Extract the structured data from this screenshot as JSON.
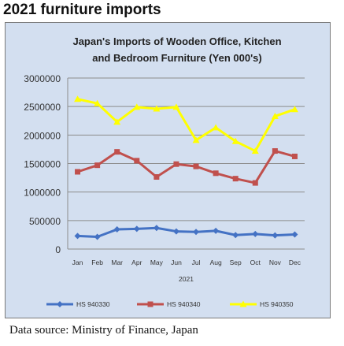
{
  "heading": "2021 furniture imports",
  "source": "Data source: Ministry of Finance, Japan",
  "chart_data": {
    "type": "line",
    "title": "Japan's Imports of  Wooden  Office, Kitchen and Bedroom Furniture (Yen 000's)",
    "title_lines": [
      "Japan's Imports of  Wooden  Office, Kitchen",
      "and Bedroom Furniture (Yen 000's)"
    ],
    "xlabel": "2021",
    "ylabel": "",
    "categories": [
      "Jan",
      "Feb",
      "Mar",
      "Apr",
      "May",
      "Jun",
      "Jul",
      "Aug",
      "Sep",
      "Oct",
      "Nov",
      "Dec"
    ],
    "ylim": [
      0,
      3000000
    ],
    "yticks": [
      "0",
      "500000",
      "1000000",
      "1500000",
      "2000000",
      "2500000",
      "3000000"
    ],
    "grid": true,
    "legend_position": "bottom",
    "series": [
      {
        "name": "HS 940330",
        "color": "#4472c4",
        "marker": "diamond",
        "values": [
          230000,
          215000,
          345000,
          355000,
          370000,
          310000,
          300000,
          320000,
          245000,
          265000,
          240000,
          255000
        ]
      },
      {
        "name": "HS 940340",
        "color": "#c0504d",
        "marker": "square",
        "values": [
          1355000,
          1470000,
          1705000,
          1550000,
          1265000,
          1490000,
          1450000,
          1330000,
          1235000,
          1160000,
          1720000,
          1625000
        ]
      },
      {
        "name": "HS 940350",
        "color": "#ffff00",
        "marker": "triangle",
        "values": [
          2630000,
          2555000,
          2230000,
          2490000,
          2460000,
          2490000,
          1910000,
          2130000,
          1890000,
          1720000,
          2330000,
          2450000
        ]
      }
    ]
  }
}
